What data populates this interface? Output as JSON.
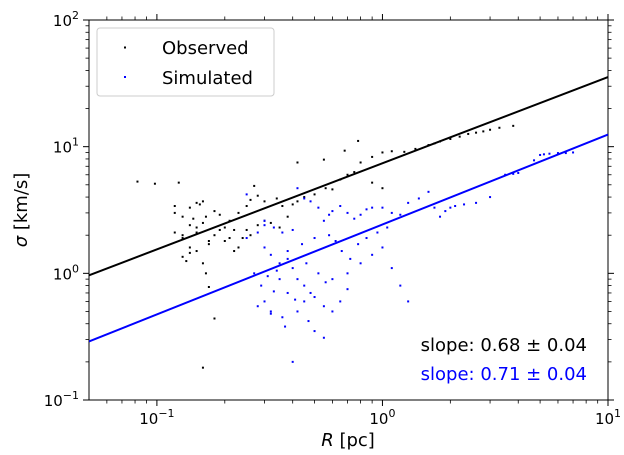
{
  "chart_data": {
    "type": "scatter",
    "xscale": "log",
    "yscale": "log",
    "xlim": [
      0.05,
      10
    ],
    "ylim": [
      0.1,
      100
    ],
    "xlabel": {
      "symbol": "R",
      "unit": "[pc]"
    },
    "ylabel": {
      "symbol": "σ",
      "unit": "[km/s]"
    },
    "xticks": [
      {
        "value": 0.1,
        "base": "10",
        "exp": "−1"
      },
      {
        "value": 1,
        "base": "10",
        "exp": "0"
      },
      {
        "value": 10,
        "base": "10",
        "exp": "1"
      }
    ],
    "yticks": [
      {
        "value": 0.1,
        "base": "10",
        "exp": "−1"
      },
      {
        "value": 1,
        "base": "10",
        "exp": "0"
      },
      {
        "value": 10,
        "base": "10",
        "exp": "1"
      },
      {
        "value": 100,
        "base": "10",
        "exp": "2"
      }
    ],
    "legend": {
      "location": "upper-left"
    },
    "series": [
      {
        "name": "Observed",
        "color": "#000000",
        "points": [
          [
            0.082,
            5.3
          ],
          [
            0.098,
            5.1
          ],
          [
            0.125,
            5.2
          ],
          [
            0.14,
            3.3
          ],
          [
            0.15,
            3.6
          ],
          [
            0.155,
            3.5
          ],
          [
            0.16,
            3.7
          ],
          [
            0.12,
            3.4
          ],
          [
            0.13,
            2.8
          ],
          [
            0.145,
            2.7
          ],
          [
            0.165,
            2.8
          ],
          [
            0.18,
            3.1
          ],
          [
            0.19,
            2.9
          ],
          [
            0.21,
            2.6
          ],
          [
            0.23,
            3.0
          ],
          [
            0.25,
            3.4
          ],
          [
            0.26,
            3.8
          ],
          [
            0.28,
            4.1
          ],
          [
            0.3,
            3.7
          ],
          [
            0.27,
            4.9
          ],
          [
            0.34,
            3.9
          ],
          [
            0.36,
            3.4
          ],
          [
            0.4,
            3.5
          ],
          [
            0.42,
            3.7
          ],
          [
            0.45,
            4.0
          ],
          [
            0.5,
            4.2
          ],
          [
            0.56,
            4.7
          ],
          [
            0.6,
            4.6
          ],
          [
            0.65,
            5.5
          ],
          [
            0.7,
            6.0
          ],
          [
            0.75,
            6.3
          ],
          [
            0.8,
            7.5
          ],
          [
            0.9,
            8.3
          ],
          [
            1.0,
            9.0
          ],
          [
            1.1,
            9.2
          ],
          [
            1.25,
            9.1
          ],
          [
            1.4,
            9.6
          ],
          [
            1.6,
            10.3
          ],
          [
            1.7,
            10.6
          ],
          [
            1.8,
            11.0
          ],
          [
            2.0,
            11.5
          ],
          [
            2.2,
            12.0
          ],
          [
            2.4,
            12.6
          ],
          [
            2.6,
            12.9
          ],
          [
            2.8,
            13.2
          ],
          [
            3.0,
            13.6
          ],
          [
            3.3,
            14.1
          ],
          [
            3.8,
            14.6
          ],
          [
            0.42,
            7.5
          ],
          [
            0.55,
            7.9
          ],
          [
            0.78,
            11.1
          ],
          [
            0.68,
            9.3
          ],
          [
            0.9,
            5.2
          ],
          [
            1.0,
            4.7
          ],
          [
            0.12,
            2.1
          ],
          [
            0.13,
            1.9
          ],
          [
            0.14,
            1.6
          ],
          [
            0.15,
            1.5
          ],
          [
            0.16,
            1.2
          ],
          [
            0.165,
            1.0
          ],
          [
            0.17,
            0.78
          ],
          [
            0.18,
            0.44
          ],
          [
            0.16,
            0.18
          ],
          [
            0.13,
            1.35
          ],
          [
            0.135,
            1.25
          ],
          [
            0.14,
            1.45
          ],
          [
            0.2,
            1.8
          ],
          [
            0.22,
            2.2
          ],
          [
            0.24,
            1.9
          ],
          [
            0.26,
            2.0
          ],
          [
            0.14,
            2.4
          ],
          [
            0.15,
            2.3
          ],
          [
            0.16,
            2.5
          ],
          [
            0.17,
            1.7
          ],
          [
            0.18,
            2.0
          ],
          [
            0.2,
            2.3
          ],
          [
            0.21,
            1.9
          ],
          [
            0.23,
            1.6
          ],
          [
            0.25,
            2.2
          ],
          [
            0.28,
            2.4
          ],
          [
            0.3,
            2.6
          ],
          [
            0.32,
            2.5
          ],
          [
            0.35,
            2.3
          ],
          [
            0.38,
            2.8
          ],
          [
            0.12,
            3.0
          ],
          [
            0.13,
            2.0
          ],
          [
            0.15,
            2.1
          ],
          [
            0.17,
            1.8
          ],
          [
            0.19,
            2.2
          ],
          [
            0.22,
            1.5
          ]
        ]
      },
      {
        "name": "Simulated",
        "color": "#0000ff",
        "points": [
          [
            0.25,
            4.2
          ],
          [
            0.3,
            2.6
          ],
          [
            0.33,
            2.3
          ],
          [
            0.36,
            2.1
          ],
          [
            0.4,
            2.2
          ],
          [
            0.42,
            4.7
          ],
          [
            0.45,
            3.9
          ],
          [
            0.48,
            3.7
          ],
          [
            0.52,
            3.3
          ],
          [
            0.55,
            2.6
          ],
          [
            0.58,
            2.9
          ],
          [
            0.6,
            3.1
          ],
          [
            0.65,
            3.4
          ],
          [
            0.7,
            3.0
          ],
          [
            0.75,
            2.7
          ],
          [
            0.8,
            2.9
          ],
          [
            0.85,
            3.2
          ],
          [
            0.9,
            3.3
          ],
          [
            1.0,
            3.3
          ],
          [
            1.1,
            3.0
          ],
          [
            1.2,
            2.9
          ],
          [
            1.3,
            3.6
          ],
          [
            1.45,
            3.9
          ],
          [
            1.6,
            4.4
          ],
          [
            1.7,
            3.3
          ],
          [
            1.8,
            2.8
          ],
          [
            1.9,
            3.1
          ],
          [
            2.0,
            3.3
          ],
          [
            2.1,
            3.4
          ],
          [
            2.3,
            3.5
          ],
          [
            2.6,
            3.6
          ],
          [
            3.0,
            4.0
          ],
          [
            3.5,
            6.0
          ],
          [
            3.8,
            6.1
          ],
          [
            4.0,
            6.2
          ],
          [
            4.7,
            7.8
          ],
          [
            5.0,
            8.6
          ],
          [
            5.2,
            8.7
          ],
          [
            5.5,
            8.8
          ],
          [
            6.0,
            8.9
          ],
          [
            6.5,
            8.9
          ],
          [
            7.0,
            9.0
          ],
          [
            0.3,
            1.6
          ],
          [
            0.32,
            1.4
          ],
          [
            0.35,
            1.2
          ],
          [
            0.38,
            1.3
          ],
          [
            0.4,
            1.1
          ],
          [
            0.42,
            0.9
          ],
          [
            0.45,
            0.8
          ],
          [
            0.48,
            0.7
          ],
          [
            0.5,
            0.65
          ],
          [
            0.55,
            0.55
          ],
          [
            0.6,
            0.5
          ],
          [
            0.65,
            0.6
          ],
          [
            0.7,
            0.75
          ],
          [
            0.35,
            0.9
          ],
          [
            0.38,
            0.7
          ],
          [
            0.3,
            0.6
          ],
          [
            0.28,
            0.55
          ],
          [
            0.32,
            0.48
          ],
          [
            0.36,
            0.45
          ],
          [
            0.42,
            0.5
          ],
          [
            0.47,
            0.42
          ],
          [
            0.5,
            0.35
          ],
          [
            0.55,
            0.31
          ],
          [
            0.4,
            0.2
          ],
          [
            0.32,
            0.5
          ],
          [
            0.45,
            0.6
          ],
          [
            0.6,
            0.9
          ],
          [
            0.7,
            1.0
          ],
          [
            0.8,
            1.2
          ],
          [
            0.9,
            1.4
          ],
          [
            1.0,
            1.6
          ],
          [
            1.1,
            1.1
          ],
          [
            1.2,
            0.8
          ],
          [
            1.3,
            0.6
          ],
          [
            0.25,
            1.9
          ],
          [
            0.28,
            2.1
          ],
          [
            0.3,
            2.4
          ],
          [
            0.27,
            1.0
          ],
          [
            0.29,
            0.8
          ],
          [
            0.31,
            0.95
          ],
          [
            0.34,
            1.05
          ],
          [
            0.38,
            1.5
          ],
          [
            0.44,
            1.7
          ],
          [
            0.5,
            1.9
          ],
          [
            0.58,
            2.0
          ],
          [
            0.62,
            1.8
          ],
          [
            0.66,
            1.5
          ],
          [
            0.72,
            1.3
          ],
          [
            0.78,
            1.7
          ],
          [
            0.85,
            1.9
          ],
          [
            0.95,
            2.1
          ],
          [
            1.05,
            2.3
          ],
          [
            0.46,
            1.2
          ],
          [
            0.52,
            1.0
          ],
          [
            0.56,
            0.85
          ],
          [
            0.41,
            0.62
          ],
          [
            0.37,
            0.38
          ],
          [
            0.33,
            0.72
          ]
        ]
      }
    ],
    "fits": [
      {
        "series": "Observed",
        "color": "#000000",
        "slope": 0.68,
        "intercept_at_1pc": 7.4
      },
      {
        "series": "Simulated",
        "color": "#0000ff",
        "slope": 0.71,
        "intercept_at_1pc": 2.43
      }
    ],
    "annotations": [
      {
        "text": "slope: 0.68 ± 0.04",
        "color": "#000000"
      },
      {
        "text": "slope: 0.71 ± 0.04",
        "color": "#0000ff"
      }
    ]
  }
}
